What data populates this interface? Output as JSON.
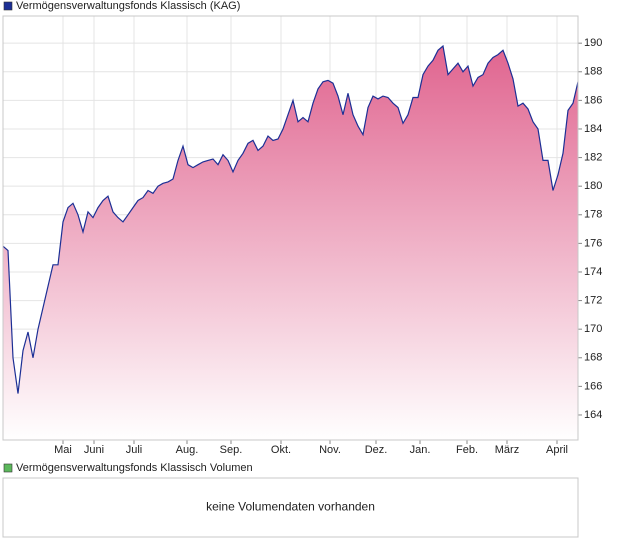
{
  "chart_data": [
    {
      "type": "area",
      "series": [
        {
          "name": "Vermögensverwaltungsfonds Klassisch (KAG)",
          "color": "#1c2f95",
          "fill": "#e0648f",
          "values": [
            175.8,
            175.5,
            168,
            165.5,
            168.5,
            169.8,
            168,
            170,
            171.5,
            173,
            174.5,
            174.5,
            177.5,
            178.5,
            178.8,
            178,
            176.8,
            178.2,
            177.8,
            178.5,
            179,
            179.3,
            178.2,
            177.8,
            177.5,
            178,
            178.5,
            179,
            179.2,
            179.7,
            179.5,
            180,
            180.2,
            180.3,
            180.5,
            181.8,
            182.8,
            181.5,
            181.3,
            181.5,
            181.7,
            181.8,
            181.9,
            181.5,
            182.2,
            181.8,
            181,
            181.8,
            182.3,
            183,
            183.2,
            182.5,
            182.8,
            183.5,
            183.2,
            183.3,
            184,
            185,
            186,
            184.5,
            184.8,
            184.5,
            185.8,
            186.8,
            187.3,
            187.4,
            187.2,
            186.3,
            185,
            186.5,
            185,
            184.2,
            183.6,
            185.5,
            186.3,
            186.1,
            186.3,
            186.2,
            185.8,
            185.5,
            184.4,
            185,
            186.2,
            186.2,
            187.8,
            188.4,
            188.8,
            189.5,
            189.8,
            187.8,
            188.2,
            188.6,
            188,
            188.4,
            187,
            187.6,
            187.8,
            188.6,
            189,
            189.2,
            189.5,
            188.6,
            187.5,
            185.6,
            185.8,
            185.4,
            184.5,
            184,
            181.8,
            181.8,
            179.7,
            180.8,
            182.3,
            185.3,
            185.8,
            187.3
          ]
        }
      ],
      "xlim": [
        0,
        115
      ],
      "xticks": [
        {
          "value": 12,
          "label": "Mai"
        },
        {
          "value": 18.2,
          "label": "Juni"
        },
        {
          "value": 26.2,
          "label": "Juli"
        },
        {
          "value": 36.8,
          "label": "Aug."
        },
        {
          "value": 45.6,
          "label": "Sep."
        },
        {
          "value": 55.6,
          "label": "Okt."
        },
        {
          "value": 65.4,
          "label": "Nov."
        },
        {
          "value": 74.6,
          "label": "Dez."
        },
        {
          "value": 83.4,
          "label": "Jan."
        },
        {
          "value": 92.8,
          "label": "Feb."
        },
        {
          "value": 100.8,
          "label": "März"
        },
        {
          "value": 110.8,
          "label": "April"
        }
      ],
      "ylim": [
        162.25,
        191.9
      ],
      "yticks": [
        164,
        166,
        168,
        170,
        172,
        174,
        176,
        178,
        180,
        182,
        184,
        186,
        188,
        190
      ],
      "grid": true
    },
    {
      "type": "bar",
      "series": [
        {
          "name": "Vermögensverwaltungsfonds Klassisch Volumen",
          "color": "#5cb85c",
          "values": []
        }
      ],
      "annotation": "keine Volumendaten vorhanden"
    }
  ]
}
